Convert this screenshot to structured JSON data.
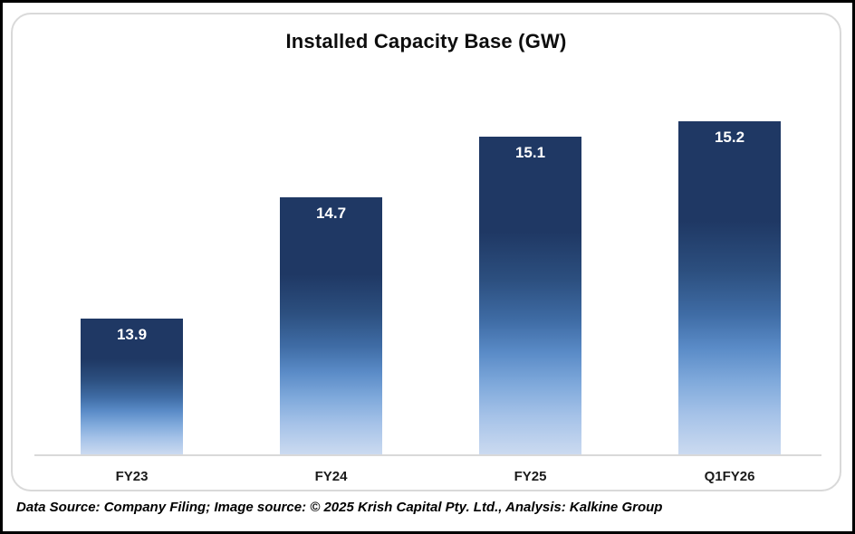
{
  "window": {
    "background": "#FFFFFF",
    "outer_border_color": "#000000",
    "card_border_color": "#D9D9D9"
  },
  "chart_data": {
    "type": "bar",
    "title": "Installed Capacity Base (GW)",
    "categories": [
      "FY23",
      "FY24",
      "FY25",
      "Q1FY26"
    ],
    "values": [
      13.9,
      14.7,
      15.1,
      15.2
    ],
    "value_labels": [
      "13.9",
      "14.7",
      "15.1",
      "15.2"
    ],
    "xlabel": "",
    "ylabel": "",
    "ylim": [
      13,
      15.5
    ],
    "grid": false,
    "legend": false,
    "axis_line_color": "#D9D9D9",
    "bar_gradient_top": "#1F3864",
    "bar_gradient_bottom": "#CBDAF0",
    "value_label_color": "#FFFFFF",
    "category_label_color": "#1A1A1A"
  },
  "footer": {
    "text": "Data Source: Company Filing; Image source: © 2025 Krish Capital Pty. Ltd., Analysis: Kalkine Group"
  }
}
